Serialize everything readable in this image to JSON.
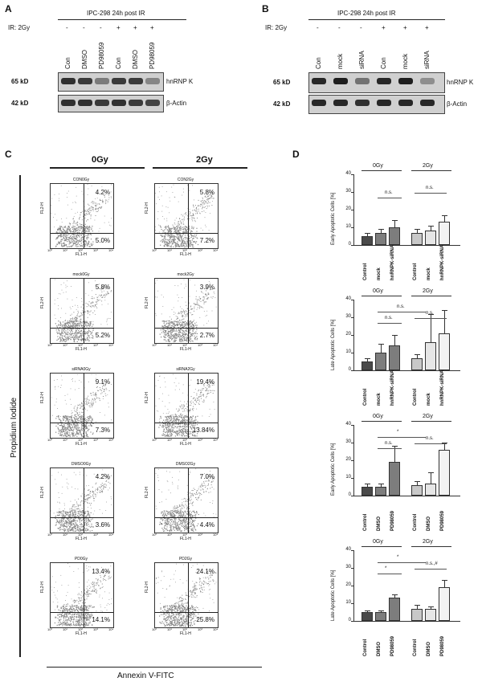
{
  "panels": {
    "A": {
      "letter": "A",
      "title": "IPC-298 24h post IR",
      "ir_label": "IR: 2Gy",
      "ir_signs": [
        "-",
        "-",
        "-",
        "+",
        "+",
        "+"
      ],
      "lanes": [
        "Con",
        "DMSO",
        "PD98059",
        "Con",
        "DMSO",
        "PD98059"
      ],
      "rows": [
        {
          "kd": "65 kD",
          "protein": "hnRNP K"
        },
        {
          "kd": "42 kD",
          "protein": "β-Actin"
        }
      ]
    },
    "B": {
      "letter": "B",
      "title": "IPC-298 24h post IR",
      "ir_label": "IR: 2Gy",
      "ir_signs": [
        "-",
        "-",
        "-",
        "+",
        "+",
        "+"
      ],
      "lanes": [
        "Con",
        "mock",
        "siRNA",
        "Con",
        "mock",
        "siRNA"
      ],
      "rows": [
        {
          "kd": "65 kD",
          "protein": "hnRNP K"
        },
        {
          "kd": "42 kD",
          "protein": "β-Actin"
        }
      ]
    },
    "C": {
      "letter": "C",
      "col_headers": [
        "0Gy",
        "2Gy"
      ],
      "y_axis_label": "Propidium Iodide",
      "x_axis_label": "Annexin V-FITC",
      "plot_xlabel": "FL1-H",
      "plot_ylabel": "FL2-H",
      "plots": [
        {
          "title": "CON0Gy",
          "upper": "4.2%",
          "lower": "5.0%"
        },
        {
          "title": "CON2Gy",
          "upper": "5.8%",
          "lower": "7.2%"
        },
        {
          "title": "mock0Gy",
          "upper": "5.8%",
          "lower": "5.2%"
        },
        {
          "title": "mock2Gy",
          "upper": "3.9%",
          "lower": "2.7%"
        },
        {
          "title": "siRNA0Gy",
          "upper": "9.1%",
          "lower": "7.3%"
        },
        {
          "title": "siRNA2Gy",
          "upper": "19.4%",
          "lower": "13.84%"
        },
        {
          "title": "DMSO0Gy",
          "upper": "4.2%",
          "lower": "3.6%"
        },
        {
          "title": "DMSO2Gy",
          "upper": "7.0%",
          "lower": "4.4%"
        },
        {
          "title": "PD0Gy",
          "upper": "13.4%",
          "lower": "14.1%"
        },
        {
          "title": "PD2Gy",
          "upper": "24.1%",
          "lower": "25.8%"
        }
      ]
    },
    "D": {
      "letter": "D"
    }
  },
  "chart_data": [
    {
      "type": "bar",
      "ylabel": "Early Apoptotic Cells [%]",
      "ylim": [
        0,
        40
      ],
      "yticks": [
        "0",
        "10",
        "20",
        "30",
        "40"
      ],
      "groups": [
        "0Gy",
        "2Gy"
      ],
      "categories": [
        "Control",
        "mock",
        "hnRNPK-siRNA",
        "Control",
        "mock",
        "hnRNPK-siRNA"
      ],
      "values": [
        5,
        7,
        10,
        7,
        8,
        13
      ],
      "errors": [
        2,
        2,
        4,
        2,
        3,
        4
      ],
      "annotations": [
        "n.s.",
        "n.s."
      ]
    },
    {
      "type": "bar",
      "ylabel": "Late Apoptotic Cells [%]",
      "ylim": [
        0,
        40
      ],
      "yticks": [
        "0",
        "10",
        "20",
        "30",
        "40"
      ],
      "groups": [
        "0Gy",
        "2Gy"
      ],
      "categories": [
        "Control",
        "mock",
        "hnRNPK-siRNA",
        "Control",
        "mock",
        "hnRNPK-siRNA"
      ],
      "values": [
        5,
        10,
        14,
        7,
        16,
        21
      ],
      "errors": [
        2,
        5,
        6,
        2,
        16,
        13
      ],
      "annotations": [
        "n.s.",
        "n.s.",
        "n.s."
      ]
    },
    {
      "type": "bar",
      "ylabel": "Early Apoptotic Cells [%]",
      "ylim": [
        0,
        40
      ],
      "yticks": [
        "0",
        "10",
        "20",
        "30",
        "40"
      ],
      "groups": [
        "0Gy",
        "2Gy"
      ],
      "categories": [
        "Control",
        "DMSO",
        "PD98059",
        "Control",
        "DMSO",
        "PD98059"
      ],
      "values": [
        5,
        5,
        19,
        6,
        7,
        26
      ],
      "errors": [
        2,
        2,
        9,
        2,
        6,
        4
      ],
      "annotations": [
        "n.s.",
        "n.s.",
        "*"
      ]
    },
    {
      "type": "bar",
      "ylabel": "Late Apoptotic Cells [%]",
      "ylim": [
        0,
        40
      ],
      "yticks": [
        "0",
        "10",
        "20",
        "30",
        "40"
      ],
      "groups": [
        "0Gy",
        "2Gy"
      ],
      "categories": [
        "Control",
        "DMSO",
        "PD98059",
        "Control",
        "DMSO",
        "PD98059"
      ],
      "values": [
        5,
        5,
        13,
        7,
        7,
        19
      ],
      "errors": [
        1,
        1,
        2,
        2,
        1,
        4
      ],
      "annotations": [
        "*",
        "n.s.,#",
        "*"
      ]
    }
  ],
  "colors": {
    "bar_dark": "#4a4a4a",
    "bar_mid": "#7d7d7d",
    "bar_light": "#c8c8c8",
    "bar_lighter": "#e6e6e6",
    "bar_lightest": "#f3f3f3",
    "dots": "#8a8a8a"
  }
}
